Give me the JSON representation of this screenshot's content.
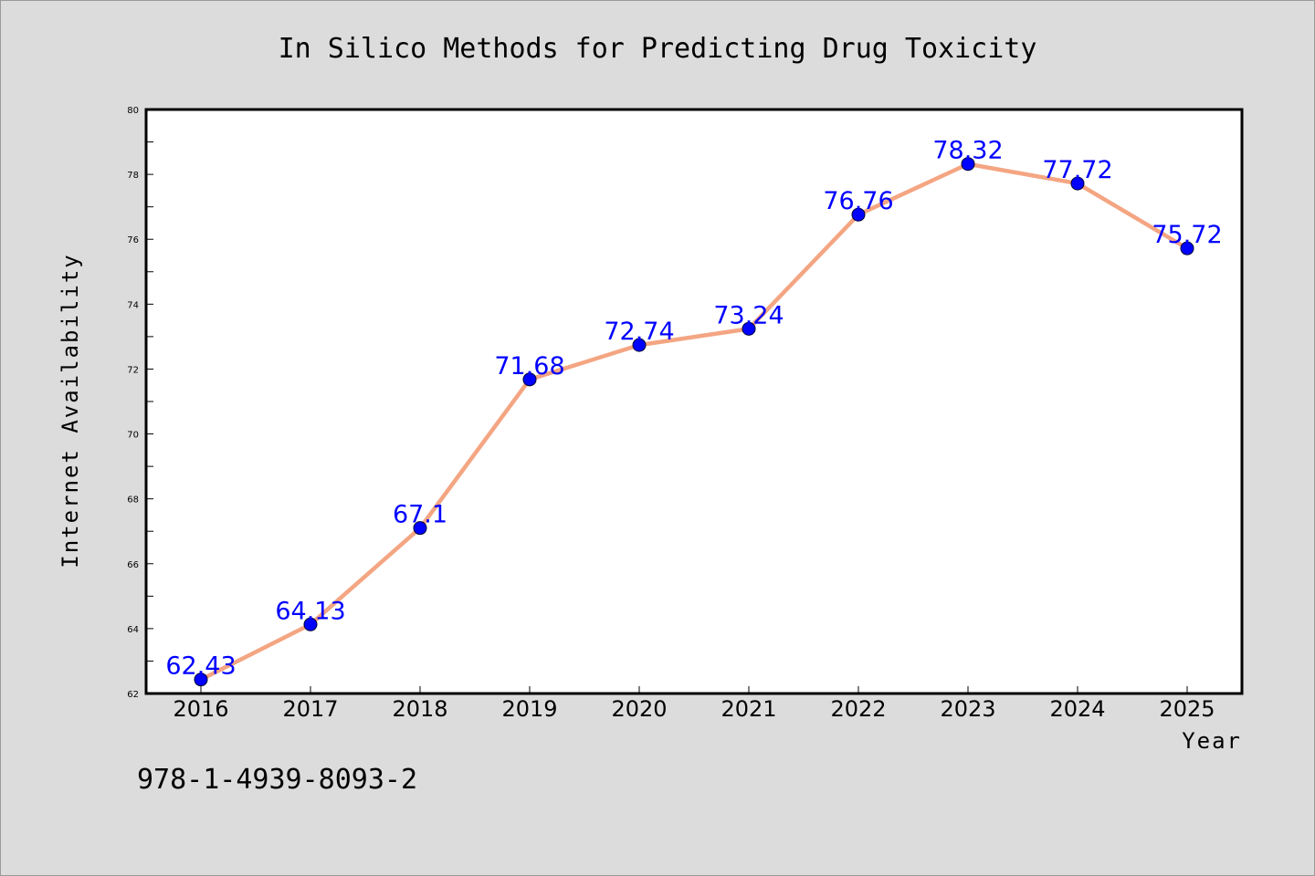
{
  "chart_data": {
    "type": "line",
    "title": "In Silico Methods for Predicting Drug Toxicity",
    "xlabel": "Year",
    "ylabel": "Internet Availability",
    "categories": [
      "2016",
      "2017",
      "2018",
      "2019",
      "2020",
      "2021",
      "2022",
      "2023",
      "2024",
      "2025"
    ],
    "series": [
      {
        "values": [
          62.43,
          64.13,
          67.1,
          71.68,
          72.74,
          73.24,
          76.76,
          78.32,
          77.72,
          75.72
        ],
        "labels": [
          "62.43",
          "64.13",
          "67.1",
          "71.68",
          "72.74",
          "73.24",
          "76.76",
          "78.32",
          "77.72",
          "75.72"
        ]
      }
    ],
    "ylim": [
      62,
      80
    ],
    "y_ticks": [
      "62",
      "64",
      "66",
      "68",
      "70",
      "72",
      "74",
      "76",
      "78",
      "80"
    ],
    "grid": false,
    "colors": {
      "line": "#f4a582",
      "marker": "#0000ff",
      "data_label": "#0000ff",
      "plot_background": "#ffffff",
      "figure_background": "#dcdcdc"
    }
  },
  "footer": {
    "isbn": "978-1-4939-8093-2"
  }
}
